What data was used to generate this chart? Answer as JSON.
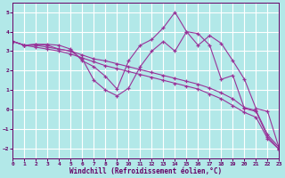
{
  "background_color": "#b2e8e8",
  "grid_color": "#c8e8e8",
  "line_color": "#993399",
  "xlabel": "Windchill (Refroidissement éolien,°C)",
  "xlim": [
    0,
    23
  ],
  "ylim": [
    -2.5,
    5.5
  ],
  "yticks": [
    -2,
    -1,
    0,
    1,
    2,
    3,
    4,
    5
  ],
  "xticks": [
    0,
    1,
    2,
    3,
    4,
    5,
    6,
    7,
    8,
    9,
    10,
    11,
    12,
    13,
    14,
    15,
    16,
    17,
    18,
    19,
    20,
    21,
    22,
    23
  ],
  "series": [
    {
      "x": [
        0,
        1,
        2,
        3,
        4,
        5,
        6,
        7,
        8,
        9,
        10,
        11,
        12,
        13,
        14,
        15,
        16,
        17,
        18,
        19,
        20,
        21,
        22,
        23
      ],
      "y": [
        3.5,
        3.3,
        3.3,
        3.2,
        3.1,
        3.0,
        2.8,
        2.6,
        2.5,
        2.35,
        2.2,
        2.05,
        1.9,
        1.75,
        1.6,
        1.45,
        1.3,
        1.1,
        0.85,
        0.55,
        0.1,
        -0.05,
        -1.3,
        -1.95
      ]
    },
    {
      "x": [
        0,
        1,
        2,
        3,
        4,
        5,
        6,
        7,
        8,
        9,
        10,
        11,
        12,
        13,
        14,
        15,
        16,
        17,
        18,
        19,
        20,
        21,
        22,
        23
      ],
      "y": [
        3.5,
        3.3,
        3.2,
        3.1,
        3.0,
        2.85,
        2.65,
        2.45,
        2.25,
        2.1,
        1.95,
        1.8,
        1.65,
        1.5,
        1.35,
        1.2,
        1.05,
        0.8,
        0.55,
        0.2,
        -0.15,
        -0.4,
        -1.5,
        -2.05
      ]
    },
    {
      "x": [
        0,
        1,
        2,
        3,
        4,
        5,
        6,
        7,
        8,
        9,
        10,
        11,
        12,
        13,
        14,
        15,
        16,
        17,
        18,
        19,
        20,
        21,
        22,
        23
      ],
      "y": [
        3.5,
        3.3,
        3.35,
        3.35,
        3.3,
        3.1,
        2.5,
        2.2,
        1.7,
        1.05,
        2.5,
        3.3,
        3.6,
        4.2,
        5.0,
        4.0,
        3.3,
        3.8,
        3.4,
        2.5,
        1.55,
        0.05,
        -0.1,
        -2.0
      ]
    },
    {
      "x": [
        0,
        1,
        2,
        3,
        4,
        5,
        6,
        7,
        8,
        9,
        10,
        11,
        12,
        13,
        14,
        15,
        16,
        17,
        18,
        19,
        20,
        21,
        22,
        23
      ],
      "y": [
        3.5,
        3.3,
        3.35,
        3.3,
        3.1,
        3.0,
        2.6,
        1.5,
        1.0,
        0.7,
        1.1,
        2.2,
        3.0,
        3.5,
        3.0,
        4.0,
        3.9,
        3.3,
        1.55,
        1.75,
        0.05,
        -0.1,
        -1.4,
        -2.05
      ]
    }
  ]
}
